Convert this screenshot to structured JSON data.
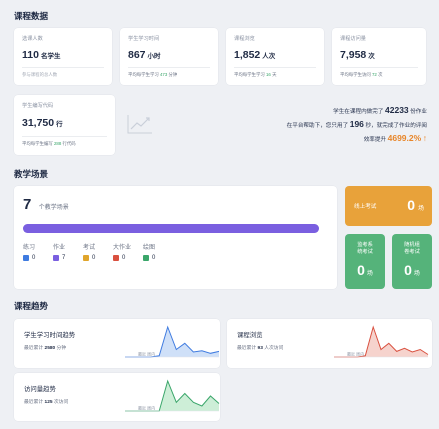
{
  "sections": {
    "course_data": "课程数据",
    "scenes": "教学场景",
    "trends": "课程趋势"
  },
  "kpis": [
    {
      "label": "选课人数",
      "value": "110",
      "unit": "名学生",
      "foot_pre": "参与课程的总人数",
      "foot_hl": "",
      "foot_post": ""
    },
    {
      "label": "学生学习时间",
      "value": "867",
      "unit": "小时",
      "foot_pre": "平均每学生学习 ",
      "foot_hl": "473",
      "foot_post": " 分钟"
    },
    {
      "label": "课程浏览",
      "value": "1,852",
      "unit": "人次",
      "foot_pre": "平均每学生学习 ",
      "foot_hl": "16",
      "foot_post": " 天"
    },
    {
      "label": "课程访问量",
      "value": "7,958",
      "unit": "次",
      "foot_pre": "平均每学生访问 ",
      "foot_hl": "72",
      "foot_post": " 次"
    },
    {
      "label": "学生编写代码",
      "value": "31,750",
      "unit": "行",
      "foot_pre": "平均每学生编写 ",
      "foot_hl": "288",
      "foot_post": " 行代码"
    }
  ],
  "summary": {
    "line1_pre": "学生在课程内做完了 ",
    "line1_num": "42233",
    "line1_post": " 份作业",
    "line2_pre": "在平台帮助下，您只用了 ",
    "line2_num": "196",
    "line2_post": " 秒，就完成了作业的评阅",
    "line3_pre": "效率提升 ",
    "line3_pct": "4699.2%",
    "line3_arrow": "↑"
  },
  "scenes": {
    "count": "7",
    "count_label": "个教学场景",
    "progress": 1.0,
    "types": [
      {
        "name": "练习",
        "value": "0",
        "color": "#3f7be0"
      },
      {
        "name": "作业",
        "value": "7",
        "color": "#7a5fe0"
      },
      {
        "name": "考试",
        "value": "0",
        "color": "#e0a52b"
      },
      {
        "name": "大作业",
        "value": "0",
        "color": "#d9503f"
      },
      {
        "name": "绘图",
        "value": "0",
        "color": "#3aa66a"
      }
    ],
    "online_exam": {
      "label": "线上考试",
      "value": "0",
      "unit": "场",
      "color": "#e8a23a"
    },
    "proctor_exam": {
      "label_1": "监考系",
      "label_2": "统考试",
      "value": "0",
      "unit": "场",
      "color": "#55b37a"
    },
    "random_exam": {
      "label_1": "随机组",
      "label_2": "卷考试",
      "value": "0",
      "unit": "场",
      "color": "#55b37a"
    }
  },
  "trends": [
    {
      "title": "学生学习时间趋势",
      "sub_pre": "最近累计 ",
      "sub_num": "2580",
      "sub_post": " 分钟",
      "color": "#3f7be0",
      "fill": "#cfe0f8",
      "hint": "最近 周内",
      "values": [
        0,
        0,
        0,
        0,
        2,
        48,
        12,
        22,
        8,
        10,
        6,
        9
      ]
    },
    {
      "title": "课程浏览",
      "sub_pre": "最近累计 ",
      "sub_num": "93",
      "sub_post": " 人次访问",
      "color": "#d9503f",
      "fill": "#f6d3cd",
      "hint": "最近 周内",
      "values": [
        0,
        0,
        0,
        0,
        2,
        48,
        12,
        22,
        9,
        14,
        8,
        12,
        4
      ]
    },
    {
      "title": "访问量趋势",
      "sub_pre": "最近累计 ",
      "sub_num": "125",
      "sub_post": " 次访问",
      "color": "#3aa66a",
      "fill": "#cdeed7",
      "hint": "最近 周内",
      "values": [
        0,
        0,
        0,
        0,
        0,
        48,
        14,
        28,
        14,
        8,
        24,
        12
      ]
    }
  ]
}
